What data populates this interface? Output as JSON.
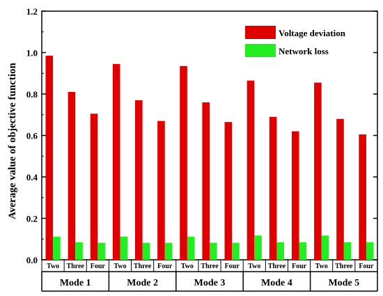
{
  "chart_data": {
    "type": "bar",
    "ylabel": "Average value of objective function",
    "ylim": [
      0,
      1.2
    ],
    "yticks": [
      0,
      0.2,
      0.4,
      0.6,
      0.8,
      1.0,
      1.2
    ],
    "ytick_labels": [
      "0.0",
      "0.2",
      "0.4",
      "0.6",
      "0.8",
      "1.0",
      "1.2"
    ],
    "groups": [
      {
        "label": "Mode 1",
        "categories": [
          "Two",
          "Three",
          "Four"
        ]
      },
      {
        "label": "Mode 2",
        "categories": [
          "Two",
          "Three",
          "Four"
        ]
      },
      {
        "label": "Mode 3",
        "categories": [
          "Two",
          "Three",
          "Four"
        ]
      },
      {
        "label": "Mode 4",
        "categories": [
          "Two",
          "Three",
          "Four"
        ]
      },
      {
        "label": "Mode 5",
        "categories": [
          "Two",
          "Three",
          "Four"
        ]
      }
    ],
    "series": [
      {
        "name": "Voltage deviation",
        "color": "#e00000",
        "values": [
          0.985,
          0.81,
          0.705,
          0.945,
          0.77,
          0.67,
          0.935,
          0.76,
          0.665,
          0.865,
          0.69,
          0.62,
          0.855,
          0.68,
          0.605
        ]
      },
      {
        "name": "Network loss",
        "color": "#22ee22",
        "values": [
          0.112,
          0.085,
          0.082,
          0.112,
          0.082,
          0.082,
          0.112,
          0.082,
          0.082,
          0.117,
          0.085,
          0.085,
          0.117,
          0.085,
          0.085
        ]
      }
    ],
    "legend_position": "top-right",
    "grid": false
  }
}
